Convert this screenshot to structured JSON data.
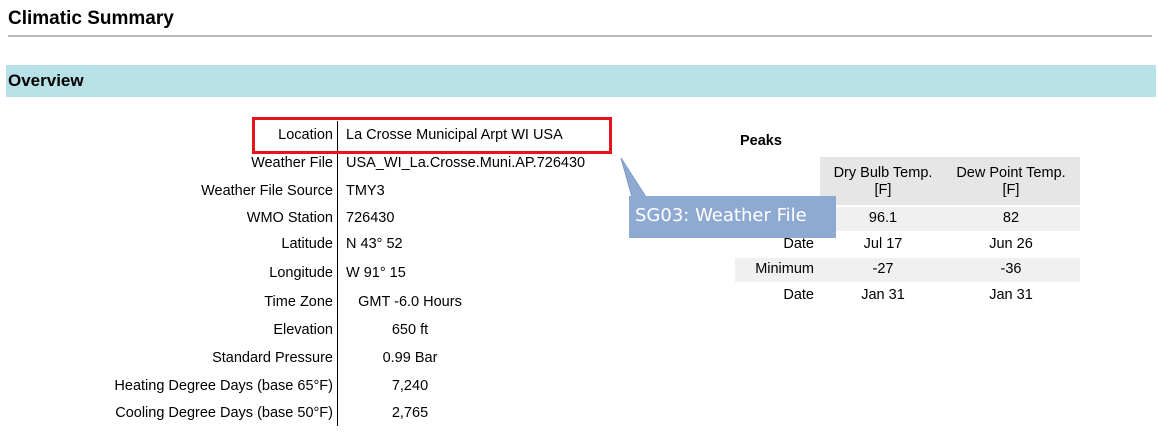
{
  "header": {
    "title": "Climatic Summary"
  },
  "section": {
    "title": "Overview"
  },
  "overview": {
    "rows": [
      {
        "label": "Location",
        "value": "La Crosse Municipal Arpt WI USA"
      },
      {
        "label": "Weather File",
        "value": "USA_WI_La.Crosse.Muni.AP.726430"
      },
      {
        "label": "Weather File Source",
        "value": "TMY3"
      },
      {
        "label": "WMO Station",
        "value": "726430"
      },
      {
        "label": "Latitude",
        "value": "N 43° 52"
      },
      {
        "label": "Longitude",
        "value": "W  91° 15"
      },
      {
        "label": "Time Zone",
        "value": "GMT -6.0 Hours"
      },
      {
        "label": "Elevation",
        "value": "650 ft"
      },
      {
        "label": "Standard Pressure",
        "value": "0.99 Bar"
      },
      {
        "label": "Heating Degree Days (base 65°F)",
        "value": "7,240"
      },
      {
        "label": "Cooling Degree Days (base 50°F)",
        "value": "2,765"
      }
    ]
  },
  "peaks": {
    "title": "Peaks",
    "columns": [
      {
        "name": "Dry Bulb Temp.",
        "unit": "[F]"
      },
      {
        "name": "Dew Point Temp.",
        "unit": "[F]"
      }
    ],
    "rows": [
      {
        "values": [
          "96.1",
          "82"
        ]
      },
      {
        "label": "Date",
        "values": [
          "Jul 17",
          "Jun 26"
        ]
      },
      {
        "label": "Minimum",
        "values": [
          "-27",
          "-36"
        ]
      },
      {
        "label": "Date",
        "values": [
          "Jan 31",
          "Jan 31"
        ]
      }
    ]
  },
  "callout": {
    "text": "SG03: Weather File"
  }
}
